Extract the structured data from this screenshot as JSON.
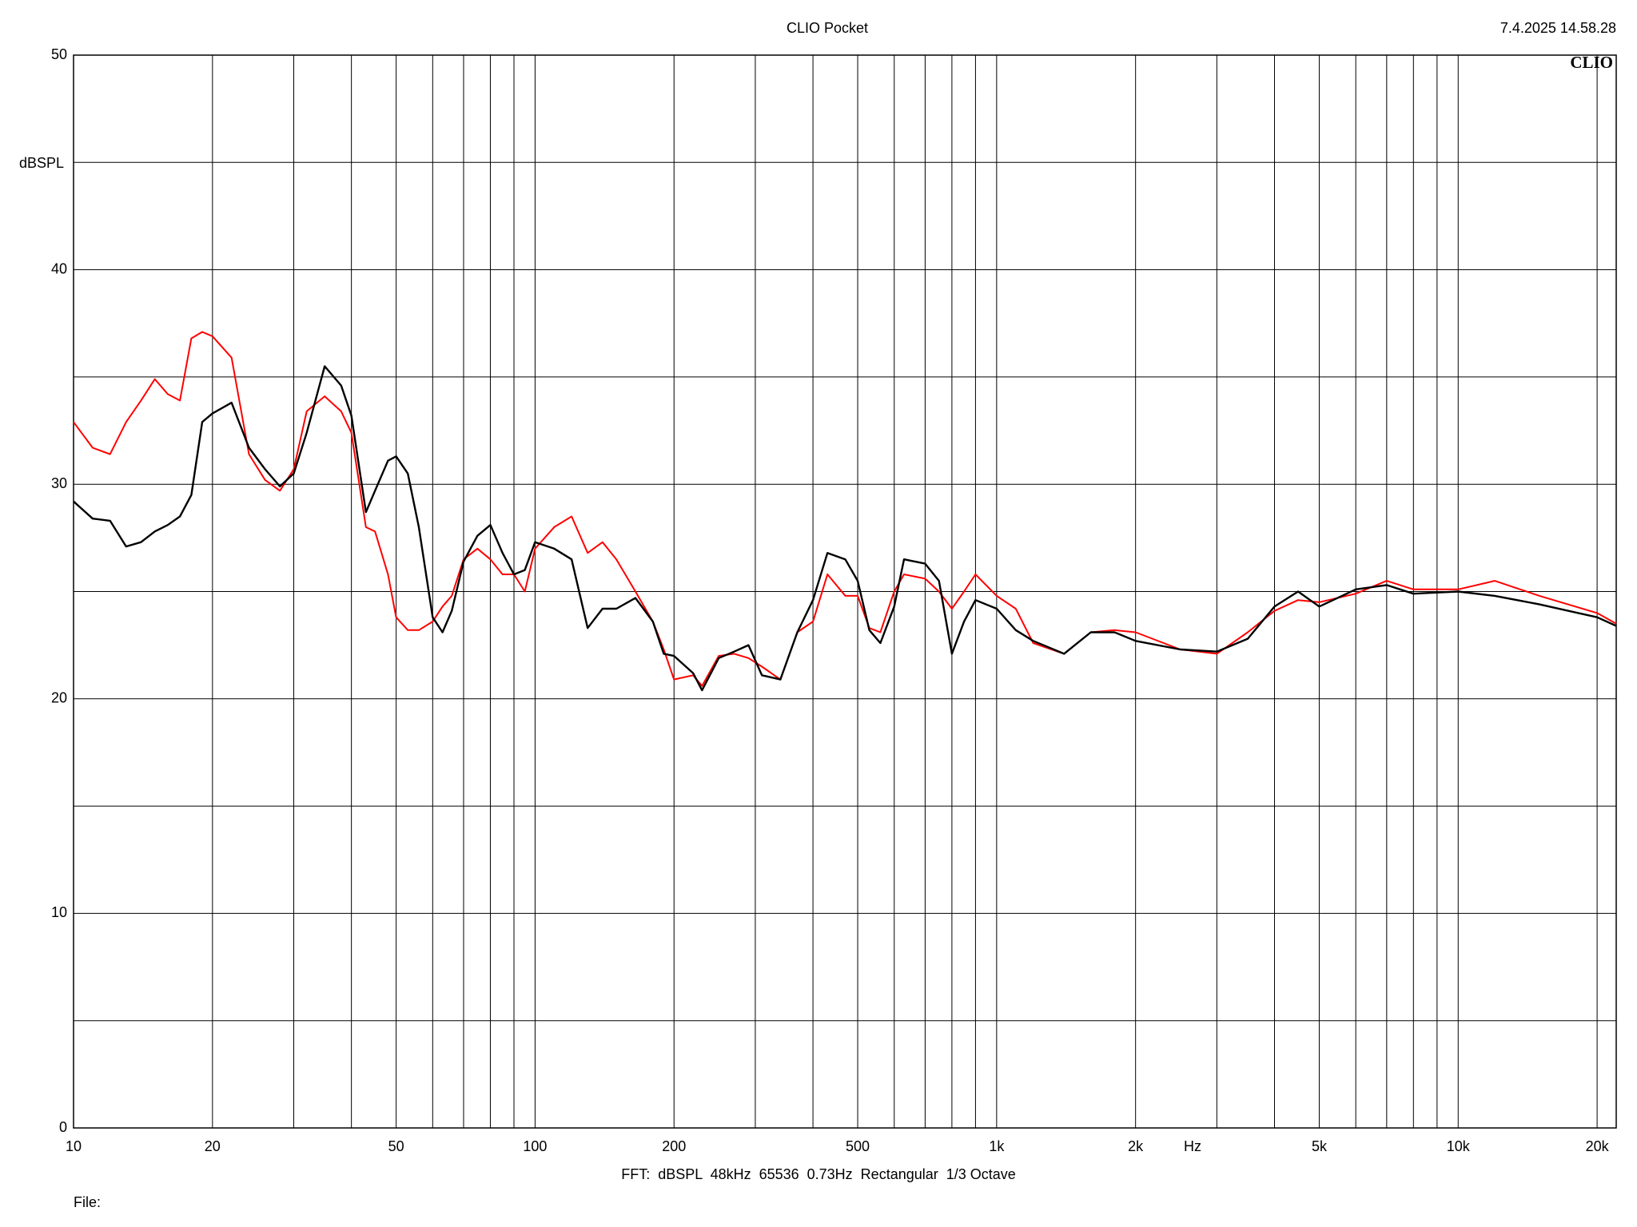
{
  "chart_data": {
    "type": "line",
    "title": "CLIO Pocket",
    "timestamp": "7.4.2025 14.58.28",
    "logo": "CLIO",
    "y_label": "dBSPL",
    "x_label": "Hz",
    "footer": "FFT:  dBSPL  48kHz  65536  0.73Hz  Rectangular  1/3 Octave",
    "file_label": "File:",
    "log_x": true,
    "grid": true,
    "xlim": [
      10,
      22000
    ],
    "ylim": [
      0,
      50
    ],
    "xticks": [
      10,
      20,
      50,
      100,
      200,
      500,
      {
        "value": 1000,
        "label": "1k"
      },
      {
        "value": 2000,
        "label": "2k"
      },
      {
        "value": 5000,
        "label": "5k"
      },
      {
        "value": 10000,
        "label": "10k"
      },
      {
        "value": 20000,
        "label": "20k"
      }
    ],
    "x_minor_grid": [
      30,
      40,
      60,
      70,
      80,
      90,
      300,
      400,
      600,
      700,
      800,
      900,
      3000,
      4000,
      6000,
      7000,
      8000,
      9000
    ],
    "yticks": [
      0,
      10,
      20,
      30,
      40,
      50
    ],
    "y_minor_grid": [
      5,
      15,
      25,
      35,
      45
    ],
    "x": [
      10,
      11,
      12,
      13,
      14,
      15,
      16,
      17,
      18,
      19,
      20,
      22,
      24,
      26,
      28,
      30,
      32,
      35,
      38,
      40,
      43,
      45,
      48,
      50,
      53,
      56,
      60,
      63,
      66,
      70,
      75,
      80,
      85,
      90,
      95,
      100,
      110,
      120,
      130,
      140,
      150,
      165,
      180,
      190,
      200,
      220,
      230,
      250,
      270,
      290,
      310,
      340,
      370,
      400,
      430,
      470,
      500,
      530,
      560,
      600,
      630,
      700,
      750,
      800,
      850,
      900,
      1000,
      1100,
      1200,
      1400,
      1600,
      1800,
      2000,
      2500,
      3000,
      3500,
      4000,
      4500,
      5000,
      6000,
      7000,
      8000,
      10000,
      12000,
      15000,
      20000,
      22000
    ],
    "series": [
      {
        "color": "#ff0000",
        "values": [
          32.9,
          31.7,
          31.4,
          32.9,
          33.9,
          34.9,
          34.2,
          33.9,
          36.8,
          37.1,
          36.9,
          35.9,
          31.4,
          30.2,
          29.7,
          30.7,
          33.4,
          34.1,
          33.4,
          32.4,
          28.0,
          27.8,
          25.8,
          23.8,
          23.2,
          23.2,
          23.6,
          24.3,
          24.8,
          26.5,
          27.0,
          26.5,
          25.8,
          25.8,
          25.0,
          27.0,
          28.0,
          28.5,
          26.8,
          27.3,
          26.5,
          25.0,
          23.6,
          22.3,
          20.9,
          21.1,
          20.6,
          22.0,
          22.1,
          21.9,
          21.5,
          20.9,
          23.1,
          23.6,
          25.8,
          24.8,
          24.8,
          23.3,
          23.1,
          25.0,
          25.8,
          25.6,
          25.0,
          24.2,
          25.0,
          25.8,
          24.8,
          24.2,
          22.6,
          22.1,
          23.1,
          23.2,
          23.1,
          22.3,
          22.1,
          23.1,
          24.1,
          24.6,
          24.5,
          24.9,
          25.5,
          25.1,
          25.1,
          25.5,
          24.8,
          24.0,
          23.5
        ]
      },
      {
        "color": "#000000",
        "values": [
          29.2,
          28.4,
          28.3,
          27.1,
          27.3,
          27.8,
          28.1,
          28.5,
          29.5,
          32.9,
          33.3,
          33.8,
          31.7,
          30.7,
          29.9,
          30.5,
          32.4,
          35.5,
          34.6,
          33.2,
          28.7,
          29.7,
          31.1,
          31.3,
          30.5,
          28.0,
          23.8,
          23.1,
          24.1,
          26.4,
          27.6,
          28.1,
          26.8,
          25.8,
          26.0,
          27.3,
          27.0,
          26.5,
          23.3,
          24.2,
          24.2,
          24.7,
          23.6,
          22.1,
          22.0,
          21.2,
          20.4,
          21.9,
          22.2,
          22.5,
          21.1,
          20.9,
          23.1,
          24.6,
          26.8,
          26.5,
          25.5,
          23.2,
          22.6,
          24.3,
          26.5,
          26.3,
          25.5,
          22.1,
          23.6,
          24.6,
          24.2,
          23.2,
          22.7,
          22.1,
          23.1,
          23.1,
          22.7,
          22.3,
          22.2,
          22.8,
          24.3,
          25.0,
          24.3,
          25.1,
          25.3,
          24.9,
          25.0,
          24.8,
          24.4,
          23.8,
          23.4
        ]
      }
    ]
  }
}
